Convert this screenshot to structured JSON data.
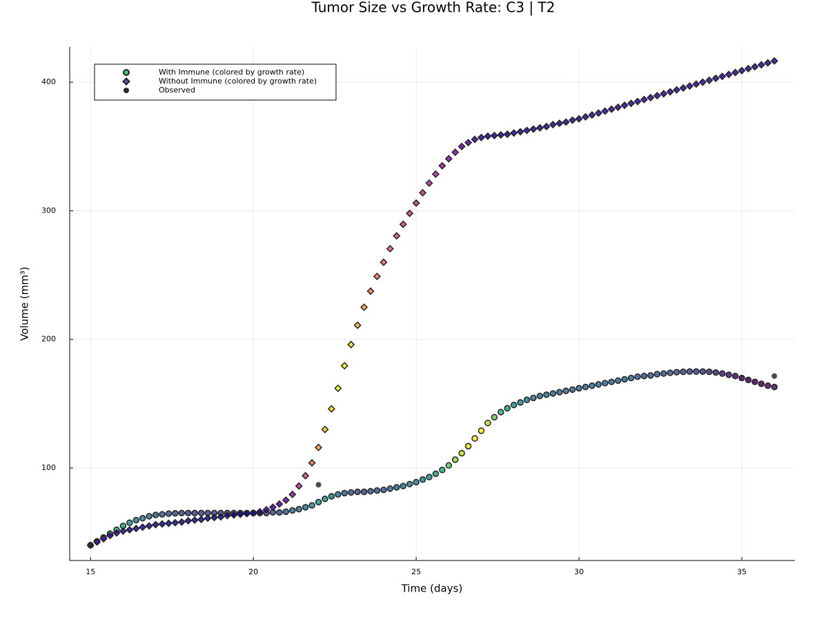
{
  "chart_data": {
    "type": "scatter",
    "title": "Tumor Size vs Growth Rate: C3 | T2",
    "x_label": "Time (days)",
    "y_label": "Volume (mm³)",
    "xlim": [
      14.36,
      36.63
    ],
    "ylim": [
      28.1,
      427.4
    ],
    "xticks": [
      15,
      20,
      25,
      30,
      35
    ],
    "yticks": [
      100,
      200,
      300,
      400
    ],
    "grid": true,
    "legend": "upper left",
    "x": [
      15,
      15.2,
      15.4,
      15.6,
      15.8,
      16,
      16.2,
      16.4,
      16.6,
      16.8,
      17,
      17.2,
      17.4,
      17.6,
      17.8,
      18,
      18.2,
      18.4,
      18.6,
      18.8,
      19,
      19.2,
      19.4,
      19.6,
      19.8,
      20,
      20.2,
      20.4,
      20.6,
      20.8,
      21,
      21.2,
      21.4,
      21.6,
      21.8,
      22,
      22.2,
      22.4,
      22.6,
      22.8,
      23,
      23.2,
      23.4,
      23.6,
      23.8,
      24,
      24.2,
      24.4,
      24.6,
      24.8,
      25,
      25.2,
      25.4,
      25.6,
      25.8,
      26,
      26.2,
      26.4,
      26.6,
      26.8,
      27,
      27.2,
      27.4,
      27.6,
      27.8,
      28,
      28.2,
      28.4,
      28.6,
      28.8,
      29,
      29.2,
      29.4,
      29.6,
      29.8,
      30,
      30.2,
      30.4,
      30.6,
      30.8,
      31,
      31.2,
      31.4,
      31.6,
      31.8,
      32,
      32.2,
      32.4,
      32.6,
      32.8,
      33,
      33.2,
      33.4,
      33.6,
      33.8,
      34,
      34.2,
      34.4,
      34.6,
      34.8,
      35,
      35.2,
      35.4,
      35.6,
      35.8,
      36
    ],
    "series": [
      {
        "name": "With Immune (colored by growth rate)",
        "color": "#4ac16d",
        "marker": "circle",
        "colormap": "viridis",
        "values": [
          40,
          43,
          46,
          49,
          52,
          55,
          57.5,
          59.5,
          61,
          62.5,
          63.5,
          64,
          64.5,
          64.8,
          65,
          65,
          65,
          65,
          65,
          65,
          65,
          65,
          65,
          65,
          65,
          65,
          65,
          65,
          65.5,
          65.5,
          66,
          67,
          68,
          69.5,
          71,
          73.5,
          76,
          78,
          79.5,
          80.5,
          81,
          81.5,
          81.5,
          82,
          82.5,
          83,
          84,
          85,
          86,
          87.5,
          89,
          91,
          93,
          95.5,
          98.5,
          102,
          106.5,
          111.5,
          117,
          123,
          129,
          135,
          139.5,
          143.5,
          146.5,
          149,
          151,
          153,
          154.5,
          156,
          157,
          158,
          159,
          160,
          161,
          162,
          163,
          164,
          165,
          166,
          167,
          168,
          169,
          170,
          171,
          171.5,
          172,
          173,
          173.5,
          174,
          174.5,
          174.8,
          175,
          175,
          175,
          174.8,
          174.3,
          173.5,
          172.5,
          171.5,
          170,
          168.5,
          167,
          165.5,
          164,
          163
        ]
      },
      {
        "name": "Without Immune (colored by growth rate)",
        "color": "#6a51a3",
        "marker": "diamond",
        "colormap": "plasma",
        "values": [
          40,
          42.5,
          45,
          47.5,
          49.5,
          51,
          52,
          53,
          54,
          55,
          56,
          56.5,
          57,
          57.5,
          58,
          59,
          59.5,
          60,
          61,
          61.5,
          62,
          63,
          63.5,
          64,
          64.5,
          65,
          66,
          67.5,
          69.5,
          72,
          75,
          79.5,
          86,
          94,
          104,
          116,
          130,
          146,
          162,
          179.5,
          196,
          211,
          225,
          237.5,
          249,
          260,
          270.5,
          280.5,
          289.5,
          298,
          306,
          314,
          321.5,
          328.5,
          335,
          340.5,
          345.5,
          350,
          353,
          355.5,
          357,
          358,
          358.5,
          359,
          359.5,
          360.5,
          361.5,
          362.5,
          363.5,
          364.5,
          365.5,
          367,
          368,
          369,
          370.5,
          371.5,
          373,
          374.5,
          376,
          377.5,
          379,
          380.5,
          382,
          383.5,
          385,
          386.5,
          388,
          389.5,
          391,
          392.5,
          394,
          395.5,
          397,
          398.5,
          400,
          401.5,
          403,
          404.5,
          406,
          407.5,
          409,
          410.5,
          412,
          413.5,
          415,
          416.5
        ]
      },
      {
        "name": "Observed",
        "color": "#2b2b2b",
        "marker": "circle",
        "x": [
          15,
          22,
          36
        ],
        "values": [
          40,
          87,
          171.5
        ]
      }
    ]
  }
}
